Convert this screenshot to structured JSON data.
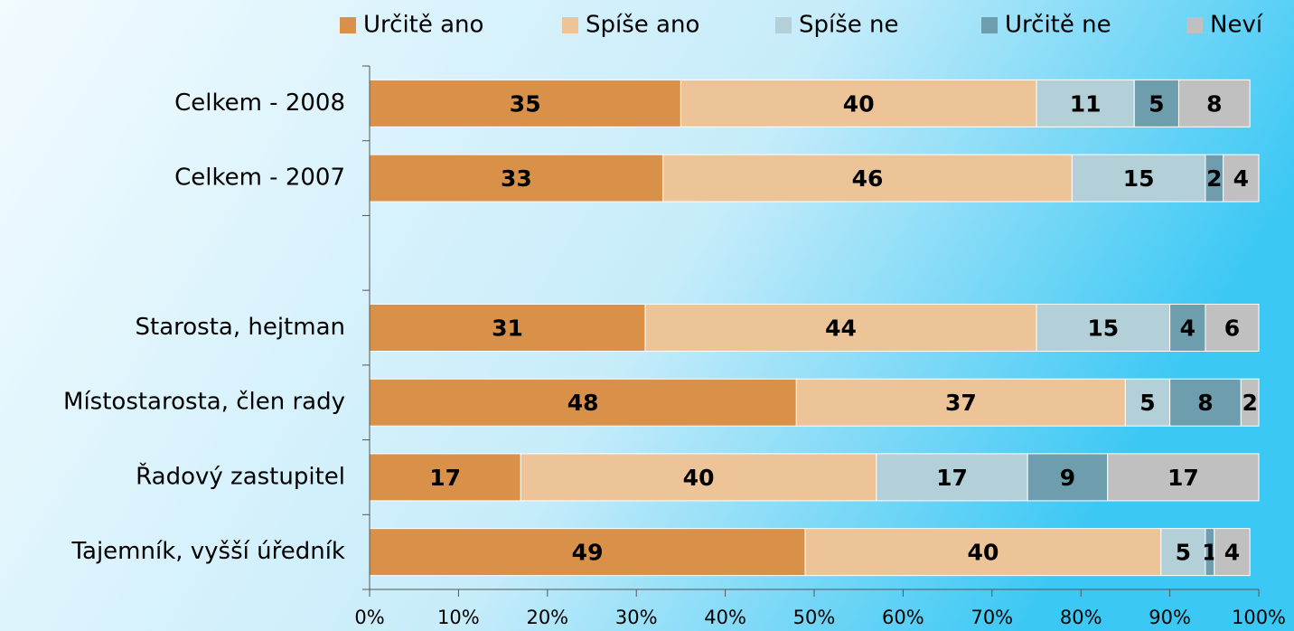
{
  "chart_data": {
    "type": "stacked-bar-horizontal",
    "categories": [
      "Celkem - 2008",
      "Celkem - 2007",
      null,
      "Starosta, hejtman",
      "Místostarosta, člen rady",
      "Řadový zastupitel",
      "Tajemník, vyšší úředník"
    ],
    "series": [
      {
        "name": "Určitě ano",
        "color": "#d9914a",
        "values": [
          35,
          33,
          null,
          31,
          48,
          17,
          49
        ]
      },
      {
        "name": "Spíše ano",
        "color": "#edc498",
        "values": [
          40,
          46,
          null,
          44,
          37,
          40,
          40
        ]
      },
      {
        "name": "Spíše ne",
        "color": "#b3d0d8",
        "values": [
          11,
          15,
          null,
          15,
          5,
          17,
          5
        ]
      },
      {
        "name": "Určitě ne",
        "color": "#6e9eae",
        "values": [
          5,
          2,
          null,
          4,
          8,
          9,
          1
        ]
      },
      {
        "name": "Neví",
        "color": "#c0c0c0",
        "values": [
          8,
          4,
          null,
          6,
          2,
          17,
          4
        ]
      }
    ],
    "xlim": [
      0,
      100
    ],
    "xticks": [
      {
        "value": 0,
        "label": "0%"
      },
      {
        "value": 10,
        "label": "10%"
      },
      {
        "value": 20,
        "label": "20%"
      },
      {
        "value": 30,
        "label": "30%"
      },
      {
        "value": 40,
        "label": "40%"
      },
      {
        "value": 50,
        "label": "50%"
      },
      {
        "value": 60,
        "label": "60%"
      },
      {
        "value": 70,
        "label": "70%"
      },
      {
        "value": 80,
        "label": "80%"
      },
      {
        "value": 90,
        "label": "90%"
      },
      {
        "value": 100,
        "label": "100%"
      }
    ],
    "legend": "top"
  }
}
